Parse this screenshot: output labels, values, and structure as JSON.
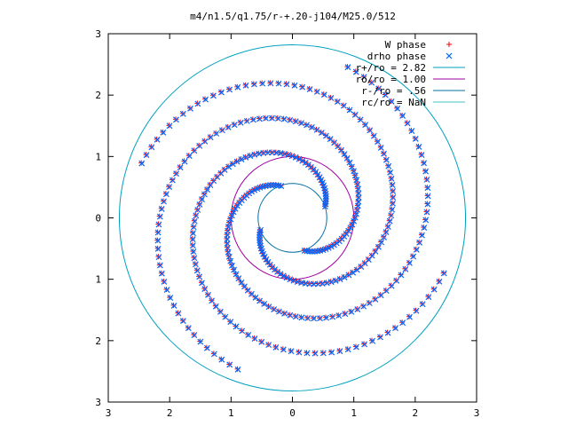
{
  "chart_data": {
    "type": "scatter",
    "title": "m4/n1.5/q1.75/r-+.20-j104/M25.0/512",
    "xlim": [
      -3,
      3
    ],
    "ylim": [
      -3,
      3
    ],
    "x_ticks": [
      -3,
      -2,
      -1,
      0,
      1,
      2,
      3
    ],
    "y_ticks": [
      -3,
      -2,
      -1,
      0,
      1,
      2,
      3
    ],
    "x_tick_labels": [
      "3",
      "2",
      "1",
      "0",
      "1",
      "2",
      "3"
    ],
    "y_tick_labels": [
      "3",
      "2",
      "1",
      "0",
      "1",
      "2",
      "3"
    ],
    "grid": false,
    "legend_position": "top-right",
    "series": [
      {
        "name": "W phase",
        "marker": "+",
        "color": "#ff0000",
        "spirals": [
          {
            "r0": 0.56,
            "r1": 2.62,
            "theta0_deg": 200,
            "theta1_deg": 520
          },
          {
            "r0": 0.56,
            "r1": 2.62,
            "theta0_deg": 290,
            "theta1_deg": 610
          },
          {
            "r0": 0.56,
            "r1": 2.62,
            "theta0_deg": 20,
            "theta1_deg": 340
          },
          {
            "r0": 0.56,
            "r1": 2.62,
            "theta0_deg": 110,
            "theta1_deg": 430
          }
        ]
      },
      {
        "name": "drho phase",
        "marker": "x",
        "color": "#0066ff",
        "spirals": [
          {
            "r0": 0.56,
            "r1": 2.62,
            "theta0_deg": 200,
            "theta1_deg": 520
          },
          {
            "r0": 0.56,
            "r1": 2.62,
            "theta0_deg": 290,
            "theta1_deg": 610
          },
          {
            "r0": 0.56,
            "r1": 2.62,
            "theta0_deg": 20,
            "theta1_deg": 340
          },
          {
            "r0": 0.56,
            "r1": 2.62,
            "theta0_deg": 110,
            "theta1_deg": 430
          }
        ]
      }
    ],
    "circles": [
      {
        "name": "r+/ro = 2.82",
        "r": 2.82,
        "color": "#00a0c0"
      },
      {
        "name": "ro/ro = 1.00",
        "r": 1.0,
        "color": "#a000a0"
      },
      {
        "name": "r-/ro = .56",
        "r": 0.56,
        "color": "#0070a0"
      },
      {
        "name": "rc/ro = NaN",
        "r": null,
        "color": "#40c0c0"
      }
    ]
  }
}
